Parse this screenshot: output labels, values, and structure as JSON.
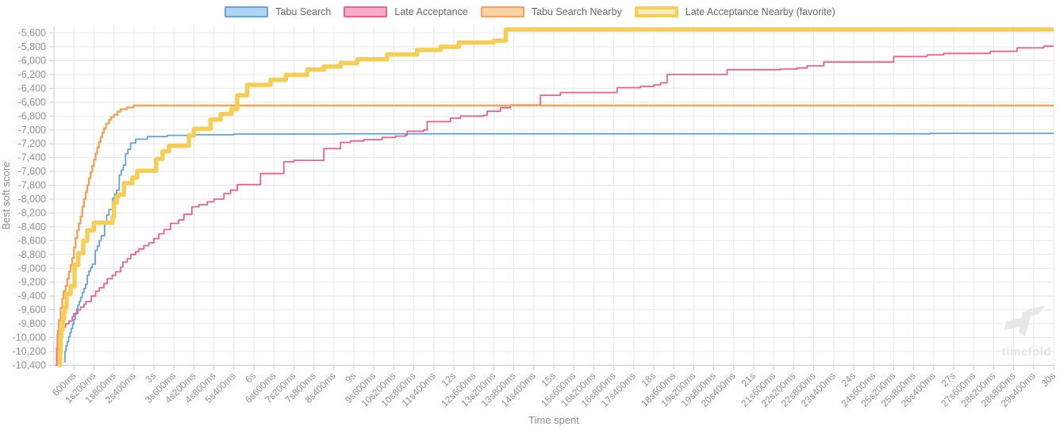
{
  "legend": {
    "items": [
      {
        "label": "Tabu Search",
        "fill": "#aed4f0",
        "border": "#64a5d9",
        "border_width": 2
      },
      {
        "label": "Late Acceptance",
        "fill": "#f6aac5",
        "border": "#e9638e",
        "border_width": 2
      },
      {
        "label": "Tabu Search Nearby",
        "fill": "#fad1a4",
        "border": "#f3a359",
        "border_width": 2
      },
      {
        "label": "Late Acceptance Nearby (favorite)",
        "fill": "#fbedbb",
        "border": "#f6ce55",
        "border_width": 4
      }
    ]
  },
  "chart_data": {
    "type": "line",
    "step": true,
    "title": "",
    "xlabel": "Time spent",
    "ylabel": "Best soft score",
    "xlim": [
      0,
      30
    ],
    "ylim": [
      -10400,
      -5500
    ],
    "grid": true,
    "legend_position": "top",
    "x_tick_labels": [
      "600ms",
      "1s200ms",
      "1s800ms",
      "2s400ms",
      "3s",
      "3s600ms",
      "4s200ms",
      "4s800ms",
      "5s400ms",
      "6s",
      "6s600ms",
      "7s200ms",
      "7s800ms",
      "8s400ms",
      "9s",
      "9s600ms",
      "10s200ms",
      "10s800ms",
      "11s400ms",
      "12s",
      "12s600ms",
      "13s200ms",
      "13s800ms",
      "14s400ms",
      "15s",
      "15s600ms",
      "16s200ms",
      "16s800ms",
      "17s400ms",
      "18s",
      "18s600ms",
      "19s200ms",
      "19s800ms",
      "20s400ms",
      "21s",
      "21s600ms",
      "22s200ms",
      "22s800ms",
      "23s400ms",
      "24s",
      "24s600ms",
      "25s200ms",
      "25s800ms",
      "26s400ms",
      "27s",
      "27s600ms",
      "28s200ms",
      "28s800ms",
      "29s400ms",
      "30s"
    ],
    "y_ticks": [
      -5600,
      -5800,
      -6000,
      -6200,
      -6400,
      -6600,
      -6800,
      -7000,
      -7200,
      -7400,
      -7600,
      -7800,
      -8000,
      -8200,
      -8400,
      -8600,
      -8800,
      -9000,
      -9200,
      -9400,
      -9600,
      -9800,
      -10000,
      -10200,
      -10400
    ],
    "series": [
      {
        "name": "Tabu Search",
        "color": "#63a3d8",
        "width": 1.8,
        "points": [
          [
            0.3,
            -10350
          ],
          [
            0.33,
            -10200
          ],
          [
            0.36,
            -10120
          ],
          [
            0.4,
            -10060
          ],
          [
            0.44,
            -9990
          ],
          [
            0.48,
            -9930
          ],
          [
            0.52,
            -9870
          ],
          [
            0.56,
            -9800
          ],
          [
            0.6,
            -9740
          ],
          [
            0.64,
            -9660
          ],
          [
            0.68,
            -9590
          ],
          [
            0.72,
            -9530
          ],
          [
            0.76,
            -9480
          ],
          [
            0.8,
            -9420
          ],
          [
            0.85,
            -9350
          ],
          [
            0.9,
            -9290
          ],
          [
            0.95,
            -9230
          ],
          [
            1.0,
            -9100
          ],
          [
            1.05,
            -9040
          ],
          [
            1.1,
            -8990
          ],
          [
            1.15,
            -8940
          ],
          [
            1.24,
            -8740
          ],
          [
            1.3,
            -8680
          ],
          [
            1.36,
            -8600
          ],
          [
            1.42,
            -8530
          ],
          [
            1.52,
            -8320
          ],
          [
            1.58,
            -8230
          ],
          [
            1.65,
            -8150
          ],
          [
            1.76,
            -7990
          ],
          [
            1.82,
            -7930
          ],
          [
            1.88,
            -7870
          ],
          [
            1.96,
            -7650
          ],
          [
            2.02,
            -7580
          ],
          [
            2.08,
            -7510
          ],
          [
            2.15,
            -7345
          ],
          [
            2.22,
            -7280
          ],
          [
            2.3,
            -7190
          ],
          [
            2.45,
            -7135
          ],
          [
            2.8,
            -7097
          ],
          [
            3.4,
            -7078
          ],
          [
            4.2,
            -7070
          ],
          [
            5.4,
            -7060
          ],
          [
            8.5,
            -7057
          ],
          [
            26.3,
            -7050
          ]
        ]
      },
      {
        "name": "Late Acceptance",
        "color": "#e9638e",
        "width": 1.8,
        "points": [
          [
            0.05,
            -10400
          ],
          [
            0.08,
            -10150
          ],
          [
            0.1,
            -9950
          ],
          [
            0.2,
            -9880
          ],
          [
            0.25,
            -9850
          ],
          [
            0.35,
            -9800
          ],
          [
            0.45,
            -9760
          ],
          [
            0.55,
            -9700
          ],
          [
            0.6,
            -9650
          ],
          [
            0.72,
            -9600
          ],
          [
            0.8,
            -9560
          ],
          [
            0.9,
            -9520
          ],
          [
            0.96,
            -9480
          ],
          [
            1.12,
            -9400
          ],
          [
            1.25,
            -9330
          ],
          [
            1.36,
            -9280
          ],
          [
            1.5,
            -9220
          ],
          [
            1.6,
            -9150
          ],
          [
            1.75,
            -9100
          ],
          [
            1.85,
            -9050
          ],
          [
            2.0,
            -8980
          ],
          [
            2.07,
            -8910
          ],
          [
            2.2,
            -8860
          ],
          [
            2.31,
            -8800
          ],
          [
            2.45,
            -8760
          ],
          [
            2.55,
            -8720
          ],
          [
            2.7,
            -8670
          ],
          [
            2.85,
            -8630
          ],
          [
            3.0,
            -8570
          ],
          [
            3.15,
            -8500
          ],
          [
            3.3,
            -8440
          ],
          [
            3.5,
            -8350
          ],
          [
            3.74,
            -8300
          ],
          [
            3.9,
            -8220
          ],
          [
            4.14,
            -8110
          ],
          [
            4.35,
            -8080
          ],
          [
            4.6,
            -8040
          ],
          [
            4.8,
            -8000
          ],
          [
            5.1,
            -7920
          ],
          [
            5.3,
            -7870
          ],
          [
            5.5,
            -7790
          ],
          [
            6.2,
            -7630
          ],
          [
            6.9,
            -7460
          ],
          [
            7.2,
            -7440
          ],
          [
            8.1,
            -7270
          ],
          [
            8.6,
            -7180
          ],
          [
            8.9,
            -7160
          ],
          [
            9.3,
            -7140
          ],
          [
            9.85,
            -7110
          ],
          [
            10.25,
            -7090
          ],
          [
            10.55,
            -7075
          ],
          [
            10.6,
            -7020
          ],
          [
            11.1,
            -7000
          ],
          [
            11.2,
            -6880
          ],
          [
            11.9,
            -6830
          ],
          [
            12.2,
            -6800
          ],
          [
            12.9,
            -6790
          ],
          [
            13.0,
            -6730
          ],
          [
            13.4,
            -6680
          ],
          [
            13.7,
            -6640
          ],
          [
            14.6,
            -6500
          ],
          [
            15.2,
            -6460
          ],
          [
            16.9,
            -6390
          ],
          [
            17.6,
            -6370
          ],
          [
            18.0,
            -6350
          ],
          [
            18.2,
            -6320
          ],
          [
            18.4,
            -6200
          ],
          [
            20.2,
            -6130
          ],
          [
            21.8,
            -6120
          ],
          [
            22.3,
            -6105
          ],
          [
            22.6,
            -6075
          ],
          [
            23.1,
            -6020
          ],
          [
            25.2,
            -5940
          ],
          [
            26.2,
            -5915
          ],
          [
            26.7,
            -5895
          ],
          [
            28.1,
            -5865
          ],
          [
            28.9,
            -5815
          ],
          [
            29.7,
            -5790
          ]
        ]
      },
      {
        "name": "Tabu Search Nearby",
        "color": "#f3a359",
        "width": 2.4,
        "points": [
          [
            0.1,
            -10400
          ],
          [
            0.12,
            -9900
          ],
          [
            0.15,
            -9750
          ],
          [
            0.2,
            -9570
          ],
          [
            0.25,
            -9440
          ],
          [
            0.29,
            -9330
          ],
          [
            0.35,
            -9250
          ],
          [
            0.4,
            -9150
          ],
          [
            0.45,
            -9050
          ],
          [
            0.5,
            -8950
          ],
          [
            0.55,
            -8850
          ],
          [
            0.6,
            -8700
          ],
          [
            0.65,
            -8560
          ],
          [
            0.7,
            -8450
          ],
          [
            0.75,
            -8350
          ],
          [
            0.8,
            -8250
          ],
          [
            0.85,
            -8110
          ],
          [
            0.9,
            -8000
          ],
          [
            0.95,
            -7900
          ],
          [
            1.0,
            -7800
          ],
          [
            1.05,
            -7700
          ],
          [
            1.1,
            -7610
          ],
          [
            1.15,
            -7520
          ],
          [
            1.2,
            -7430
          ],
          [
            1.25,
            -7340
          ],
          [
            1.3,
            -7255
          ],
          [
            1.35,
            -7175
          ],
          [
            1.4,
            -7105
          ],
          [
            1.45,
            -7040
          ],
          [
            1.5,
            -6980
          ],
          [
            1.56,
            -6910
          ],
          [
            1.65,
            -6855
          ],
          [
            1.72,
            -6815
          ],
          [
            1.8,
            -6780
          ],
          [
            1.91,
            -6735
          ],
          [
            2.0,
            -6700
          ],
          [
            2.19,
            -6675
          ],
          [
            2.39,
            -6647
          ]
        ]
      },
      {
        "name": "Late Acceptance Nearby (favorite)",
        "color": "#f6ce55",
        "width": 5.5,
        "points": [
          [
            0.15,
            -10400
          ],
          [
            0.18,
            -10230
          ],
          [
            0.2,
            -10000
          ],
          [
            0.22,
            -9890
          ],
          [
            0.26,
            -9750
          ],
          [
            0.3,
            -9640
          ],
          [
            0.33,
            -9560
          ],
          [
            0.38,
            -9370
          ],
          [
            0.5,
            -9260
          ],
          [
            0.62,
            -8950
          ],
          [
            0.73,
            -8780
          ],
          [
            0.88,
            -8600
          ],
          [
            1.0,
            -8450
          ],
          [
            1.2,
            -8340
          ],
          [
            1.76,
            -8260
          ],
          [
            1.8,
            -8050
          ],
          [
            1.88,
            -7960
          ],
          [
            1.95,
            -7935
          ],
          [
            2.1,
            -7770
          ],
          [
            2.35,
            -7690
          ],
          [
            2.5,
            -7590
          ],
          [
            3.07,
            -7420
          ],
          [
            3.26,
            -7310
          ],
          [
            3.45,
            -7230
          ],
          [
            4.05,
            -7080
          ],
          [
            4.2,
            -6985
          ],
          [
            4.7,
            -6850
          ],
          [
            5.0,
            -6770
          ],
          [
            5.33,
            -6700
          ],
          [
            5.5,
            -6500
          ],
          [
            5.8,
            -6350
          ],
          [
            6.5,
            -6275
          ],
          [
            6.96,
            -6205
          ],
          [
            7.6,
            -6130
          ],
          [
            8.1,
            -6085
          ],
          [
            8.6,
            -6035
          ],
          [
            9.1,
            -5980
          ],
          [
            10.0,
            -5910
          ],
          [
            10.9,
            -5845
          ],
          [
            11.6,
            -5800
          ],
          [
            12.15,
            -5737
          ],
          [
            13.2,
            -5710
          ],
          [
            13.56,
            -5548
          ]
        ]
      }
    ]
  },
  "watermark": {
    "text": "timefold"
  },
  "style": {
    "grid_color": "#e8e8e8",
    "axis_border_color": "#cccccc",
    "tick_color": "#cccccc",
    "tick_label_color": "#8f8f8f",
    "axis_title_color": "#8c8c8c",
    "watermark_color": "#e7e7e7"
  }
}
